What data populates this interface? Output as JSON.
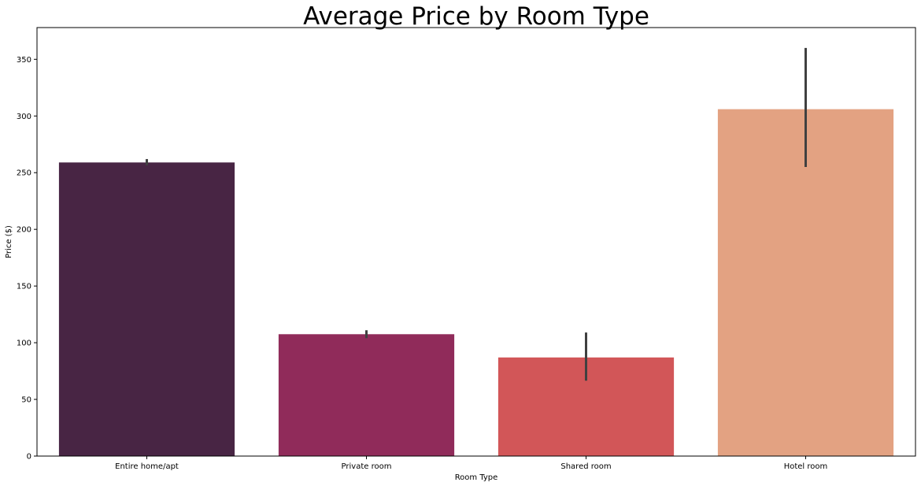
{
  "chart_data": {
    "type": "bar",
    "title": "Average Price by Room Type",
    "xlabel": "Room Type",
    "ylabel": "Price ($)",
    "categories": [
      "Entire home/apt",
      "Private room",
      "Shared room",
      "Hotel room"
    ],
    "values": [
      259,
      107.5,
      87,
      306
    ],
    "error_bars": [
      {
        "low": 256.5,
        "high": 262
      },
      {
        "low": 104,
        "high": 111
      },
      {
        "low": 66.5,
        "high": 109
      },
      {
        "low": 255,
        "high": 360
      }
    ],
    "colors": [
      "#482544",
      "#902b5a",
      "#d25658",
      "#e3a282"
    ],
    "error_color": "#404040",
    "ylim": [
      0,
      378
    ],
    "yticks": [
      0,
      50,
      100,
      150,
      200,
      250,
      300,
      350
    ],
    "grid": false,
    "legend": "none"
  }
}
